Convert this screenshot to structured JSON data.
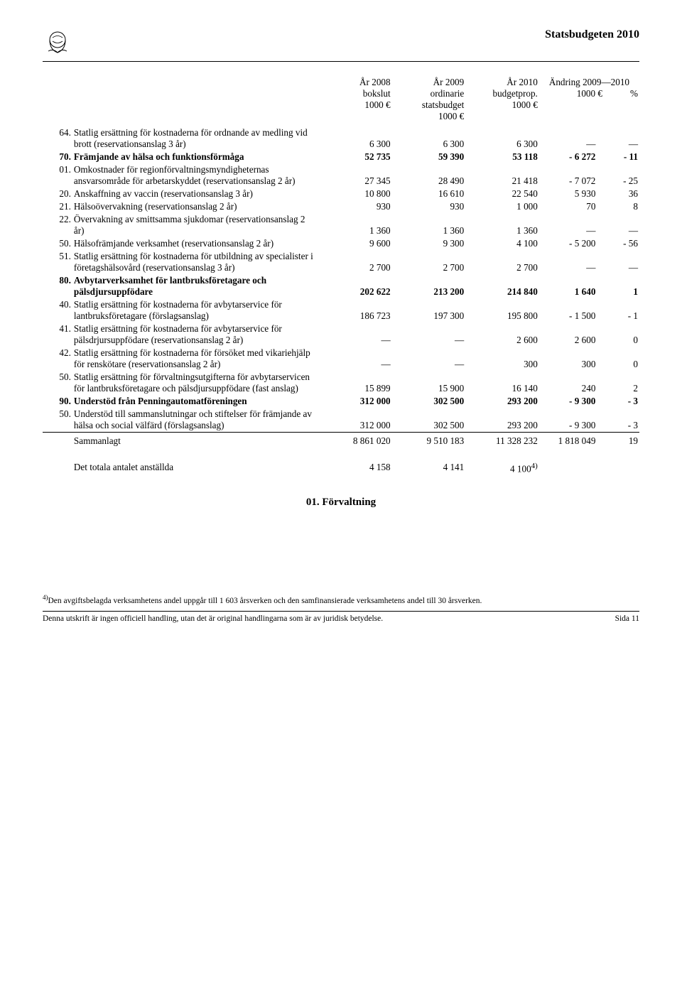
{
  "header": {
    "doc_title": "Statsbudgeten 2010"
  },
  "table": {
    "head": {
      "c1_l1": "År 2008",
      "c1_l2": "bokslut",
      "c1_l3": "1000 €",
      "c2_l1": "År 2009",
      "c2_l2": "ordinarie",
      "c2_l3": "statsbudget",
      "c2_l4": "1000 €",
      "c3_l1": "År 2010",
      "c3_l2": "budgetprop.",
      "c3_l3": "1000 €",
      "change_title": "Ändring 2009—2010",
      "c4_l1": "1000 €",
      "c5_l1": "%"
    },
    "rows": [
      {
        "code": "64.",
        "label": "Statlig ersättning för kostnaderna för ordnande av medling vid brott  (reservationsanslag 3 år)",
        "v": [
          "6 300",
          "6 300",
          "6 300",
          "—",
          "—"
        ],
        "bold": false
      },
      {
        "code": "70.",
        "label": "Främjande av hälsa och funktionsförmåga",
        "v": [
          "52 735",
          "59 390",
          "53 118",
          "- 6 272",
          "- 11"
        ],
        "bold": true
      },
      {
        "code": "01.",
        "label": "Omkostnader för regionförvaltningsmyndigheternas ansvarsområde för arbetarskyddet (reservationsanslag 2 år)",
        "v": [
          "27 345",
          "28 490",
          "21 418",
          "- 7 072",
          "- 25"
        ],
        "bold": false
      },
      {
        "code": "20.",
        "label": "Anskaffning av vaccin (reservationsanslag 3 år)",
        "v": [
          "10 800",
          "16 610",
          "22 540",
          "5 930",
          "36"
        ],
        "bold": false
      },
      {
        "code": "21.",
        "label": "Hälsoövervakning (reservationsanslag 2 år)",
        "v": [
          "930",
          "930",
          "1 000",
          "70",
          "8"
        ],
        "bold": false
      },
      {
        "code": "22.",
        "label": "Övervakning av smittsamma sjukdomar (reservationsanslag 2 år)",
        "v": [
          "1 360",
          "1 360",
          "1 360",
          "—",
          "—"
        ],
        "bold": false
      },
      {
        "code": "50.",
        "label": "Hälsofrämjande verksamhet (reservationsanslag 2 år)",
        "v": [
          "9 600",
          "9 300",
          "4 100",
          "- 5 200",
          "- 56"
        ],
        "bold": false
      },
      {
        "code": "51.",
        "label": "Statlig ersättning för kostnaderna för utbildning av specialister i företagshälsovård (reservationsanslag 3 år)",
        "v": [
          "2 700",
          "2 700",
          "2 700",
          "—",
          "—"
        ],
        "bold": false
      },
      {
        "code": "80.",
        "label": "Avbytarverksamhet för lantbruksföretagare och pälsdjursuppfödare",
        "v": [
          "202 622",
          "213 200",
          "214 840",
          "1 640",
          "1"
        ],
        "bold": true
      },
      {
        "code": "40.",
        "label": "Statlig ersättning för kostnaderna för avbytarservice för lantbruksföretagare (förslagsanslag)",
        "v": [
          "186 723",
          "197 300",
          "195 800",
          "- 1 500",
          "- 1"
        ],
        "bold": false
      },
      {
        "code": "41.",
        "label": "Statlig ersättning för kostnaderna för avbytarservice för pälsdrjursuppfödare (reservationsanslag 2 år)",
        "v": [
          "—",
          "—",
          "2 600",
          "2 600",
          "0"
        ],
        "bold": false
      },
      {
        "code": "42.",
        "label": "Statlig ersättning för kostnaderna för försöket med vikariehjälp för renskötare (reservationsanslag 2 år)",
        "v": [
          "—",
          "—",
          "300",
          "300",
          "0"
        ],
        "bold": false
      },
      {
        "code": "50.",
        "label": "Statlig ersättning för förvaltningsutgifterna för avbytarservicen för lantbruksföretagare och pälsdjursuppfödare (fast anslag)",
        "v": [
          "15 899",
          "15 900",
          "16 140",
          "240",
          "2"
        ],
        "bold": false
      },
      {
        "code": "90.",
        "label": "Understöd från Penningautomatföreningen",
        "v": [
          "312 000",
          "302 500",
          "293 200",
          "- 9 300",
          "- 3"
        ],
        "bold": true
      },
      {
        "code": "50.",
        "label": "Understöd till sammanslutningar och stiftelser för främjande av hälsa och social välfärd (förslagsanslag)",
        "v": [
          "312 000",
          "302 500",
          "293 200",
          "- 9 300",
          "- 3"
        ],
        "bold": false
      }
    ],
    "total": {
      "label": "Sammanlagt",
      "v": [
        "8 861 020",
        "9 510 183",
        "11 328 232",
        "1 818 049",
        "19"
      ]
    },
    "staff": {
      "label": "Det totala antalet anställda",
      "v": [
        "4 158",
        "4 141",
        "4 100",
        "4)"
      ]
    }
  },
  "section_heading": "01. Förvaltning",
  "footnote": {
    "sup": "4)",
    "text": "Den avgiftsbelagda verksamhetens andel uppgår till 1 603 årsverken och den samfinansierade verksamhetens andel till 30 årsverken."
  },
  "footer": {
    "left": "Denna utskrift är ingen officiell handling, utan det är original handlingarna som är av juridisk betydelse.",
    "right": "Sida 11"
  },
  "colors": {
    "text": "#000000",
    "background": "#ffffff",
    "rule": "#000000"
  }
}
